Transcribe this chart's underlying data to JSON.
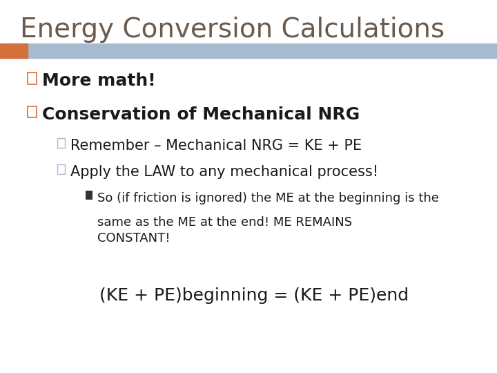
{
  "title": "Energy Conversion Calculations",
  "title_color": "#6B5B4E",
  "title_fontsize": 28,
  "bg_color": "#FFFFFF",
  "header_bar_color": "#A8BAD0",
  "header_bar_accent": "#D4703A",
  "bullet1": "More math!",
  "bullet2": "Conservation of Mechanical NRG",
  "sub1": "Remember – Mechanical NRG = KE + PE",
  "sub2": "Apply the LAW to any mechanical process!",
  "sub_sub_line1": "So (if friction is ignored) the ME at the beginning is the",
  "sub_sub_line2": "same as the ME at the end! ME REMAINS",
  "sub_sub_line3": "CONSTANT!",
  "formula": "(KE + PE)beginning = (KE + PE)end",
  "text_color": "#1A1A1A",
  "bullet1_fontsize": 18,
  "bullet2_fontsize": 18,
  "sub_fontsize": 15,
  "subsub_fontsize": 13,
  "formula_fontsize": 18,
  "bullet_sq_color": "#D4703A",
  "sub_sq_color": "#A8BAD0",
  "subsub_sq_color": "#333333"
}
